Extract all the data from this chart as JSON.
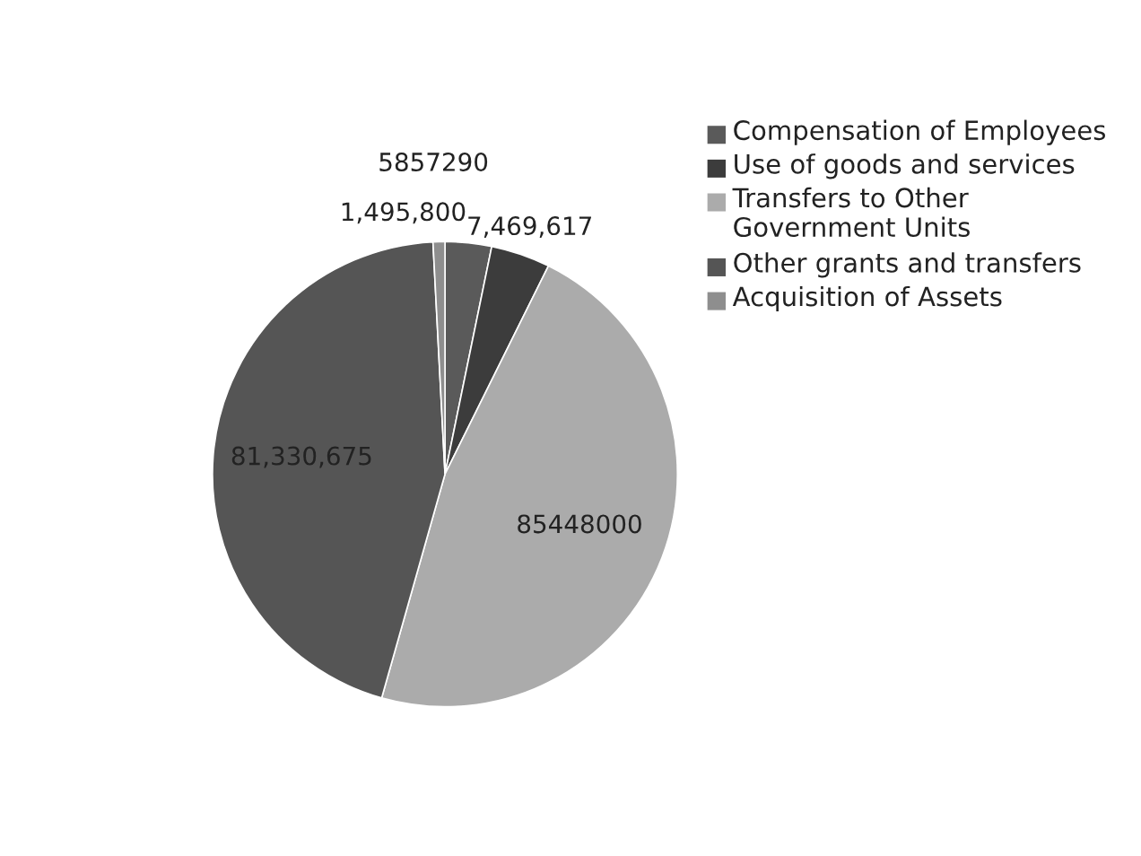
{
  "chart_data": {
    "type": "pie",
    "categories": [
      "Compensation of Employees",
      "Use of goods and services",
      "Transfers to Other Government Units",
      "Other grants and transfers",
      "Acquisition of Assets"
    ],
    "values": [
      5857290,
      7469617,
      85448000,
      81330675,
      1495800
    ],
    "value_labels": [
      "5857290",
      "7,469,617",
      "85448000",
      "81,330,675",
      "1,495,800"
    ],
    "colors": [
      "#5a5a5a",
      "#3c3c3c",
      "#ababab",
      "#555555",
      "#8e8e8e"
    ],
    "legend": "right"
  }
}
